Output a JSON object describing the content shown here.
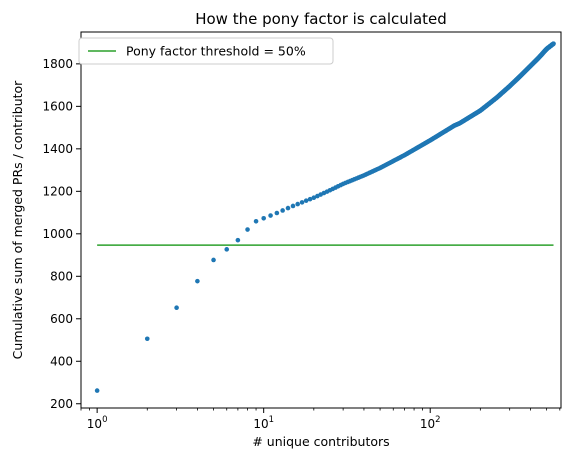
{
  "chart_data": {
    "type": "scatter",
    "title": "How the pony factor is calculated",
    "xlabel": "# unique contributors",
    "ylabel": "Cumulative sum of merged PRs / contributor",
    "xscale": "log",
    "xlim": [
      0.8,
      610
    ],
    "ylim": [
      180,
      1950
    ],
    "x_ticks": [
      {
        "value": 1,
        "label": "10",
        "exp": "0"
      },
      {
        "value": 10,
        "label": "10",
        "exp": "1"
      },
      {
        "value": 100,
        "label": "10",
        "exp": "2"
      }
    ],
    "y_ticks": [
      200,
      400,
      600,
      800,
      1000,
      1200,
      1400,
      1600,
      1800
    ],
    "grid": false,
    "legend": {
      "placement": "top-left",
      "entries": [
        {
          "label": "Pony factor threshold = 50%",
          "color": "#2ca02c",
          "kind": "line"
        }
      ]
    },
    "threshold": {
      "y": 947,
      "color": "#2ca02c"
    },
    "series": [
      {
        "color": "#1f77b4",
        "marker": "point",
        "n_points": 550,
        "x": [
          1,
          2,
          3,
          4,
          5,
          6,
          7,
          8,
          9,
          10,
          11,
          12,
          13,
          14,
          15,
          16,
          17,
          18,
          19,
          20,
          25,
          30,
          40,
          50,
          70,
          100,
          140,
          150,
          200,
          250,
          300,
          350,
          400,
          450,
          500,
          550
        ],
        "y": [
          262,
          506,
          652,
          777,
          877,
          927,
          970,
          1020,
          1059,
          1073,
          1086,
          1098,
          1110,
          1121,
          1131,
          1140,
          1148,
          1156,
          1163,
          1170,
          1205,
          1235,
          1275,
          1310,
          1370,
          1440,
          1510,
          1520,
          1580,
          1640,
          1695,
          1745,
          1790,
          1830,
          1870,
          1895
        ]
      }
    ]
  }
}
